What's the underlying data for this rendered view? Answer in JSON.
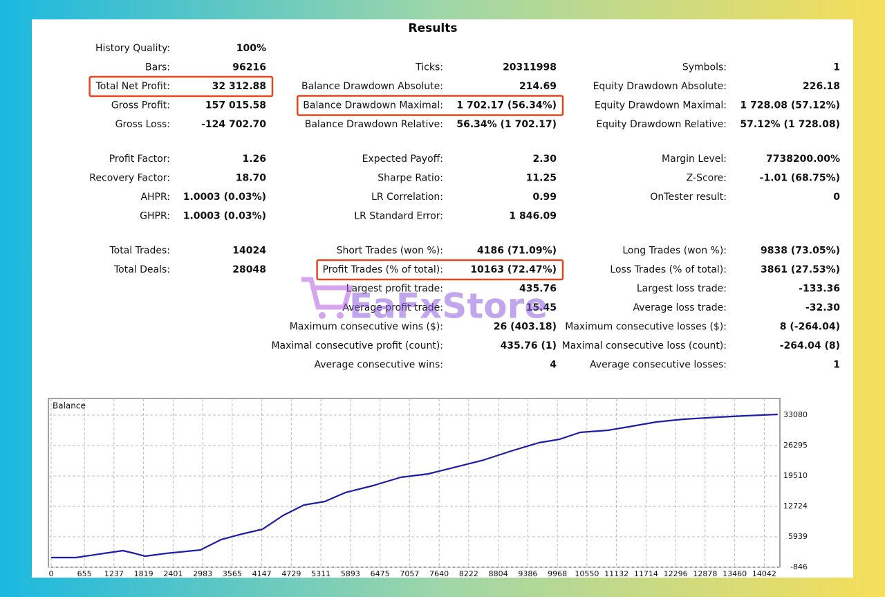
{
  "title": "Results",
  "sections": [
    [
      {
        "left": {
          "label": "History Quality:",
          "value": "100%"
        }
      },
      {
        "left": {
          "label": "Bars:",
          "value": "96216"
        },
        "middle": {
          "label": "Ticks:",
          "value": "20311998"
        },
        "right": {
          "label": "Symbols:",
          "value": "1"
        }
      },
      {
        "left": {
          "label": "Total Net Profit:",
          "value": "32 312.88",
          "highlight": true
        },
        "middle": {
          "label": "Balance Drawdown Absolute:",
          "value": "214.69"
        },
        "right": {
          "label": "Equity Drawdown Absolute:",
          "value": "226.18"
        }
      },
      {
        "left": {
          "label": "Gross Profit:",
          "value": "157 015.58"
        },
        "middle": {
          "label": "Balance Drawdown Maximal:",
          "value": "1 702.17 (56.34%)",
          "highlight": true
        },
        "right": {
          "label": "Equity Drawdown Maximal:",
          "value": "1 728.08 (57.12%)"
        }
      },
      {
        "left": {
          "label": "Gross Loss:",
          "value": "-124 702.70"
        },
        "middle": {
          "label": "Balance Drawdown Relative:",
          "value": "56.34% (1 702.17)"
        },
        "right": {
          "label": "Equity Drawdown Relative:",
          "value": "57.12% (1 728.08)"
        }
      }
    ],
    [
      {
        "left": {
          "label": "Profit Factor:",
          "value": "1.26"
        },
        "middle": {
          "label": "Expected Payoff:",
          "value": "2.30"
        },
        "right": {
          "label": "Margin Level:",
          "value": "7738200.00%"
        }
      },
      {
        "left": {
          "label": "Recovery Factor:",
          "value": "18.70"
        },
        "middle": {
          "label": "Sharpe Ratio:",
          "value": "11.25"
        },
        "right": {
          "label": "Z-Score:",
          "value": "-1.01 (68.75%)"
        }
      },
      {
        "left": {
          "label": "AHPR:",
          "value": "1.0003 (0.03%)"
        },
        "middle": {
          "label": "LR Correlation:",
          "value": "0.99"
        },
        "right": {
          "label": "OnTester result:",
          "value": "0"
        }
      },
      {
        "left": {
          "label": "GHPR:",
          "value": "1.0003 (0.03%)"
        },
        "middle": {
          "label": "LR Standard Error:",
          "value": "1 846.09"
        }
      }
    ],
    [
      {
        "left": {
          "label": "Total Trades:",
          "value": "14024"
        },
        "middle": {
          "label": "Short Trades (won %):",
          "value": "4186 (71.09%)"
        },
        "right": {
          "label": "Long Trades (won %):",
          "value": "9838 (73.05%)"
        }
      },
      {
        "left": {
          "label": "Total Deals:",
          "value": "28048"
        },
        "middle": {
          "label": "Profit Trades (% of total):",
          "value": "10163 (72.47%)",
          "highlight": true
        },
        "right": {
          "label": "Loss Trades (% of total):",
          "value": "3861 (27.53%)"
        }
      },
      {
        "middle": {
          "label": "Largest profit trade:",
          "value": "435.76"
        },
        "right": {
          "label": "Largest loss trade:",
          "value": "-133.36"
        }
      },
      {
        "middle": {
          "label": "Average profit trade:",
          "value": "15.45"
        },
        "right": {
          "label": "Average loss trade:",
          "value": "-32.30"
        }
      },
      {
        "middle": {
          "label": "Maximum consecutive wins ($):",
          "value": "26 (403.18)"
        },
        "right": {
          "label": "Maximum consecutive losses ($):",
          "value": "8 (-264.04)"
        }
      },
      {
        "middle": {
          "label": "Maximal consecutive profit (count):",
          "value": "435.76 (1)"
        },
        "right": {
          "label": "Maximal consecutive loss (count):",
          "value": "-264.04 (8)"
        }
      },
      {
        "middle": {
          "label": "Average consecutive wins:",
          "value": "4"
        },
        "right": {
          "label": "Average consecutive losses:",
          "value": "1"
        }
      }
    ]
  ],
  "watermark": "EaFxStore",
  "chart_data": {
    "type": "line",
    "title": "Balance",
    "x": [
      0,
      490,
      1034,
      1414,
      1646,
      1850,
      2258,
      2938,
      3346,
      3754,
      4162,
      4570,
      4978,
      5386,
      5794,
      6338,
      6882,
      7426,
      7970,
      8514,
      9058,
      9602,
      10010,
      10418,
      10962,
      11370,
      11914,
      12458,
      13138,
      13682,
      14307
    ],
    "series": [
      {
        "name": "Balance",
        "color": "#1c1ca8",
        "values": [
          1313,
          1313,
          2238,
          2855,
          2238,
          1621,
          2238,
          3009,
          5322,
          6556,
          7635,
          10719,
          13032,
          13803,
          15808,
          17350,
          19200,
          19971,
          21513,
          23055,
          25060,
          26910,
          27681,
          29223,
          29686,
          30457,
          31536,
          32153,
          32616,
          32924,
          33233
        ]
      }
    ],
    "xlim": [
      0,
      14350
    ],
    "ylim": [
      -846,
      36780
    ],
    "xticks": [
      0,
      655,
      1237,
      1819,
      2401,
      2983,
      3565,
      4147,
      4729,
      5311,
      5893,
      6475,
      7057,
      7640,
      8222,
      8804,
      9386,
      9968,
      10550,
      11132,
      11714,
      12296,
      12878,
      13460,
      14042
    ],
    "yticks": [
      -846,
      5939,
      12724,
      19510,
      26295,
      33080
    ],
    "grid": true
  }
}
